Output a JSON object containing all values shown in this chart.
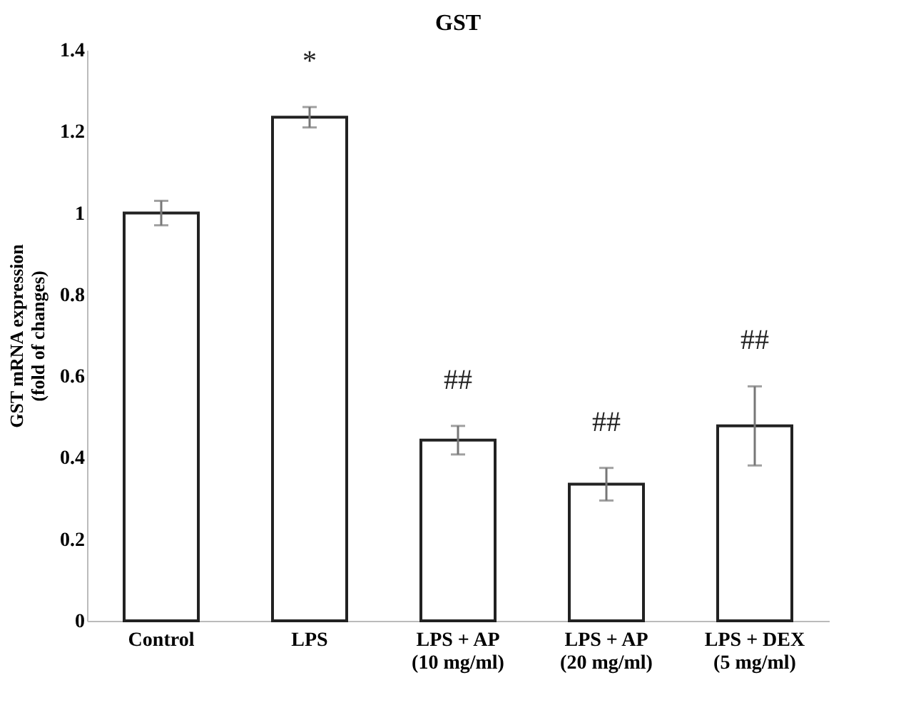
{
  "chart_data": {
    "type": "bar",
    "title": "GST",
    "ylabel": "GST mRNA expression\n(fold of changes)",
    "categories": [
      "Control",
      "LPS",
      "LPS + AP\n(10 mg/ml)",
      "LPS + AP\n(20 mg/ml)",
      "LPS + DEX\n(5 mg/ml)"
    ],
    "values": [
      1.0,
      1.235,
      0.443,
      0.335,
      0.478
    ],
    "errors": [
      0.03,
      0.025,
      0.035,
      0.04,
      0.097
    ],
    "color": "#ffffff",
    "ylim": [
      0,
      1.4
    ],
    "yticks": [
      0,
      0.2,
      0.4,
      0.6,
      0.8,
      1,
      1.2,
      1.4
    ],
    "grid": false,
    "annotations": [
      "*",
      "##",
      "##",
      "##"
    ]
  }
}
